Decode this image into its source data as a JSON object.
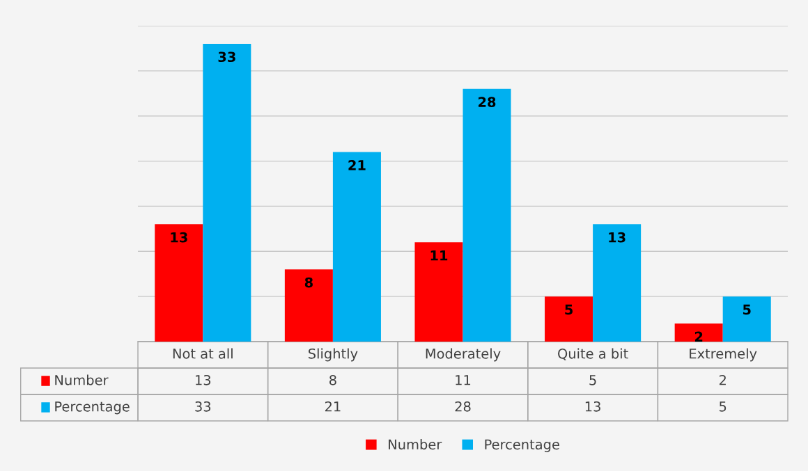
{
  "chart_data": {
    "type": "bar",
    "categories": [
      "Not at all",
      "Slightly",
      "Moderately",
      "Quite a bit",
      "Extremely"
    ],
    "series": [
      {
        "name": "Number",
        "color": "#ff0000",
        "values": [
          13,
          8,
          11,
          5,
          2
        ],
        "value_labels": [
          "13",
          "8",
          "11",
          "5",
          "2"
        ]
      },
      {
        "name": "Percentage",
        "color": "#00b0f0",
        "values": [
          33,
          21,
          28,
          13,
          5
        ],
        "value_labels": [
          "33",
          "21",
          "28",
          "13",
          "5"
        ]
      }
    ],
    "ylim": [
      0,
      35
    ],
    "yticks": [
      {
        "value": 0,
        "label": null
      },
      {
        "value": 5,
        "label": null
      },
      {
        "value": 10,
        "label": null
      },
      {
        "value": 15,
        "label": null
      },
      {
        "value": 20,
        "label": null
      },
      {
        "value": 25,
        "label": null
      },
      {
        "value": 30,
        "label": null
      },
      {
        "value": 35,
        "label": null
      }
    ],
    "grid": "y",
    "data_labels": true,
    "legend": "bottom",
    "tick_labels": "x"
  }
}
